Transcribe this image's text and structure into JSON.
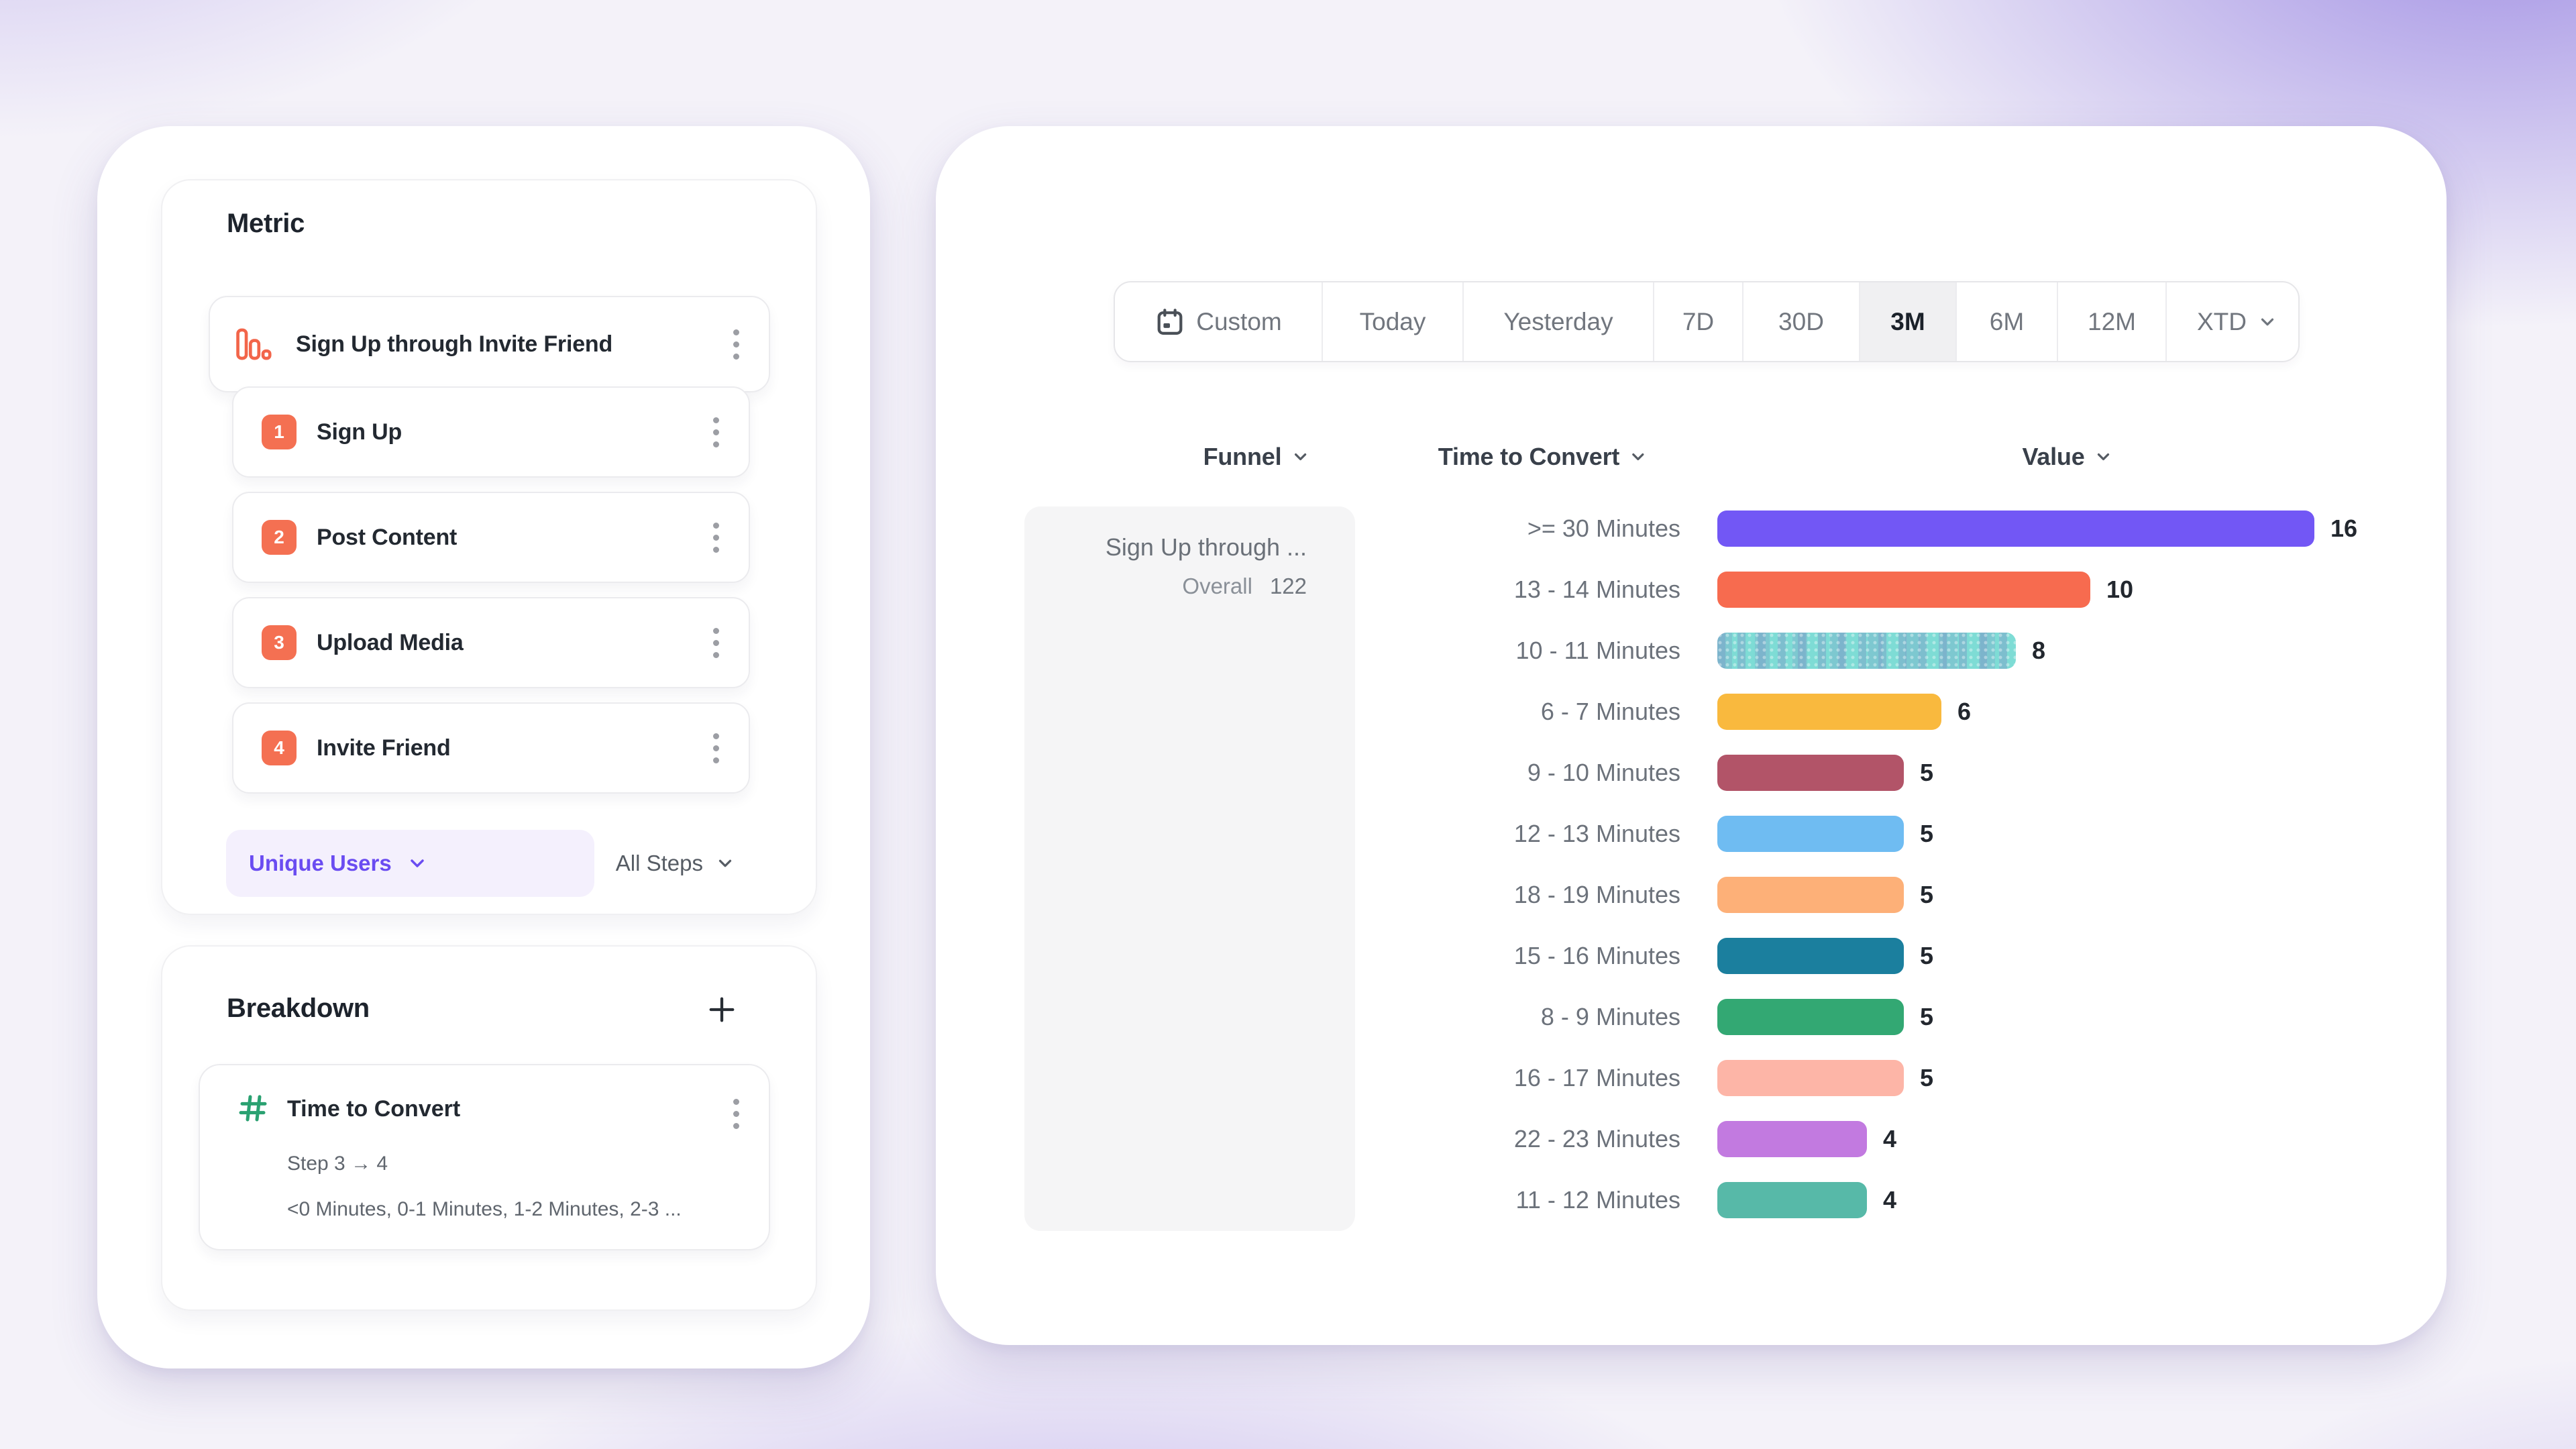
{
  "left": {
    "metric": {
      "title": "Metric",
      "funnel_name": "Sign Up through Invite Friend",
      "steps": [
        {
          "num": "1",
          "label": "Sign Up"
        },
        {
          "num": "2",
          "label": "Post Content"
        },
        {
          "num": "3",
          "label": "Upload Media"
        },
        {
          "num": "4",
          "label": "Invite Friend"
        }
      ],
      "counting": "Unique Users",
      "steps_filter": "All Steps"
    },
    "breakdown": {
      "title": "Breakdown",
      "property": "Time to Convert",
      "step_range": "Step 3 → 4",
      "buckets_preview": "<0 Minutes, 0-1 Minutes, 1-2 Minutes, 2-3 ..."
    }
  },
  "right": {
    "date_ranges": [
      "Custom",
      "Today",
      "Yesterday",
      "7D",
      "30D",
      "3M",
      "6M",
      "12M",
      "XTD"
    ],
    "selected_range": "3M",
    "columns": {
      "funnel": "Funnel",
      "breakdown": "Time to Convert",
      "value": "Value"
    },
    "funnel_cell": {
      "name": "Sign Up through ...",
      "overall_label": "Overall",
      "overall_value": "122"
    }
  },
  "icons": {
    "metric": "bar-chart-icon",
    "breakdown": "hash-icon",
    "date": "calendar-icon",
    "menus": "kebab-menu-icon",
    "dropdowns": "chevron-down-icon",
    "add": "plus-icon"
  },
  "accent_colors": {
    "step_badge": "#f47052",
    "counting_pill_text": "#6a4cf1",
    "counting_pill_bg": "#f4f0fd",
    "hash_green": "#2aa171"
  },
  "chart_data": {
    "type": "bar",
    "orientation": "horizontal",
    "title": "Time to Convert breakdown values",
    "xlabel": "Value",
    "ylabel": "Time to Convert",
    "xlim": [
      0,
      16
    ],
    "grid": false,
    "categories": [
      ">= 30 Minutes",
      "13 - 14 Minutes",
      "10 - 11 Minutes",
      "6 - 7 Minutes",
      "9 - 10 Minutes",
      "12 - 13 Minutes",
      "18 - 19 Minutes",
      "15 - 16 Minutes",
      "8 - 9 Minutes",
      "16 - 17 Minutes",
      "22 - 23 Minutes",
      "11 - 12 Minutes"
    ],
    "values": [
      16,
      10,
      8,
      6,
      5,
      5,
      5,
      5,
      5,
      5,
      4,
      4
    ],
    "colors": [
      "#7257f5",
      "#f76b4f",
      "#7edcd5",
      "#f9b93e",
      "#b25468",
      "#6fbcf2",
      "#fdb078",
      "#1b7f9e",
      "#33a873",
      "#fdb5a7",
      "#c27ae0",
      "#57b9a8"
    ],
    "hatched": [
      false,
      false,
      true,
      false,
      false,
      false,
      false,
      false,
      false,
      false,
      false,
      false
    ],
    "overall": {
      "funnel": "Sign Up through ...",
      "label": "Overall",
      "value": 122
    }
  }
}
